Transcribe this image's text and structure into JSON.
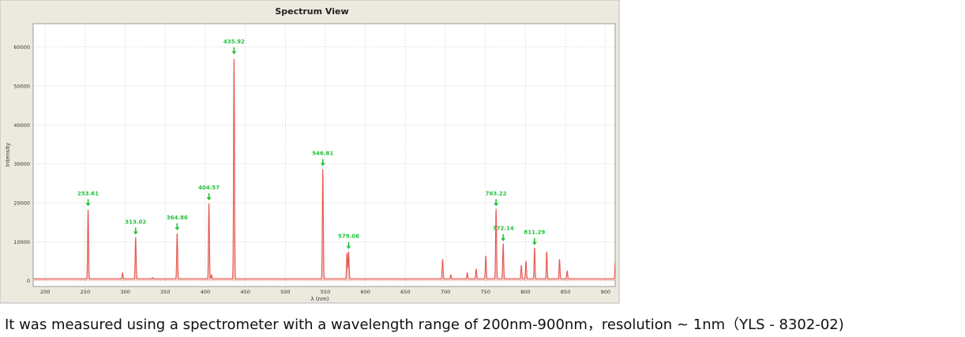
{
  "window_title": "Spectrum View",
  "caption": "It was measured using a spectrometer with a wavelength range of 200nm-900nm，resolution ~ 1nm（YLS - 8302-02)",
  "colors": {
    "frame_bg": "#ECEADE",
    "plot_bg": "#FFFFFF",
    "line": "#E8554E",
    "fill": "#F4C6C1",
    "annotation": "#22C23A",
    "grid": "#C8C8C8"
  },
  "chart_data": {
    "type": "line",
    "title": "Spectrum View",
    "xlabel": "λ (nm)",
    "ylabel": "Intensity",
    "xlim": [
      185,
      912
    ],
    "ylim": [
      -1500,
      66000
    ],
    "grid": true,
    "x_ticks": [
      200,
      250,
      300,
      350,
      400,
      450,
      500,
      550,
      600,
      650,
      700,
      750,
      800,
      850,
      900
    ],
    "y_ticks": [
      0,
      10000,
      20000,
      30000,
      40000,
      50000,
      60000
    ],
    "baseline": 500,
    "peaks": [
      {
        "x": 253.61,
        "y": 18500,
        "label": "253.61"
      },
      {
        "x": 296.7,
        "y": 2000
      },
      {
        "x": 313.02,
        "y": 11200,
        "label": "313.02"
      },
      {
        "x": 334.1,
        "y": 800
      },
      {
        "x": 364.86,
        "y": 12300,
        "label": "364.86"
      },
      {
        "x": 404.57,
        "y": 20000,
        "label": "404.57"
      },
      {
        "x": 407.8,
        "y": 1500
      },
      {
        "x": 435.92,
        "y": 57500,
        "label": "435.92"
      },
      {
        "x": 546.81,
        "y": 28800,
        "label": "546.81"
      },
      {
        "x": 577.0,
        "y": 7100
      },
      {
        "x": 579.06,
        "y": 7500,
        "label": "579.06"
      },
      {
        "x": 696.5,
        "y": 5500
      },
      {
        "x": 706.7,
        "y": 1500
      },
      {
        "x": 727.3,
        "y": 2000
      },
      {
        "x": 738.4,
        "y": 3000
      },
      {
        "x": 750.4,
        "y": 6500
      },
      {
        "x": 763.22,
        "y": 18500,
        "label": "763.22"
      },
      {
        "x": 772.14,
        "y": 9500,
        "label": "772.14"
      },
      {
        "x": 794.8,
        "y": 4000
      },
      {
        "x": 800.6,
        "y": 5000
      },
      {
        "x": 811.29,
        "y": 8500,
        "label": "811.29"
      },
      {
        "x": 826.5,
        "y": 7500
      },
      {
        "x": 842.5,
        "y": 5500
      },
      {
        "x": 852.1,
        "y": 2500
      },
      {
        "x": 912.3,
        "y": 5200
      }
    ]
  }
}
